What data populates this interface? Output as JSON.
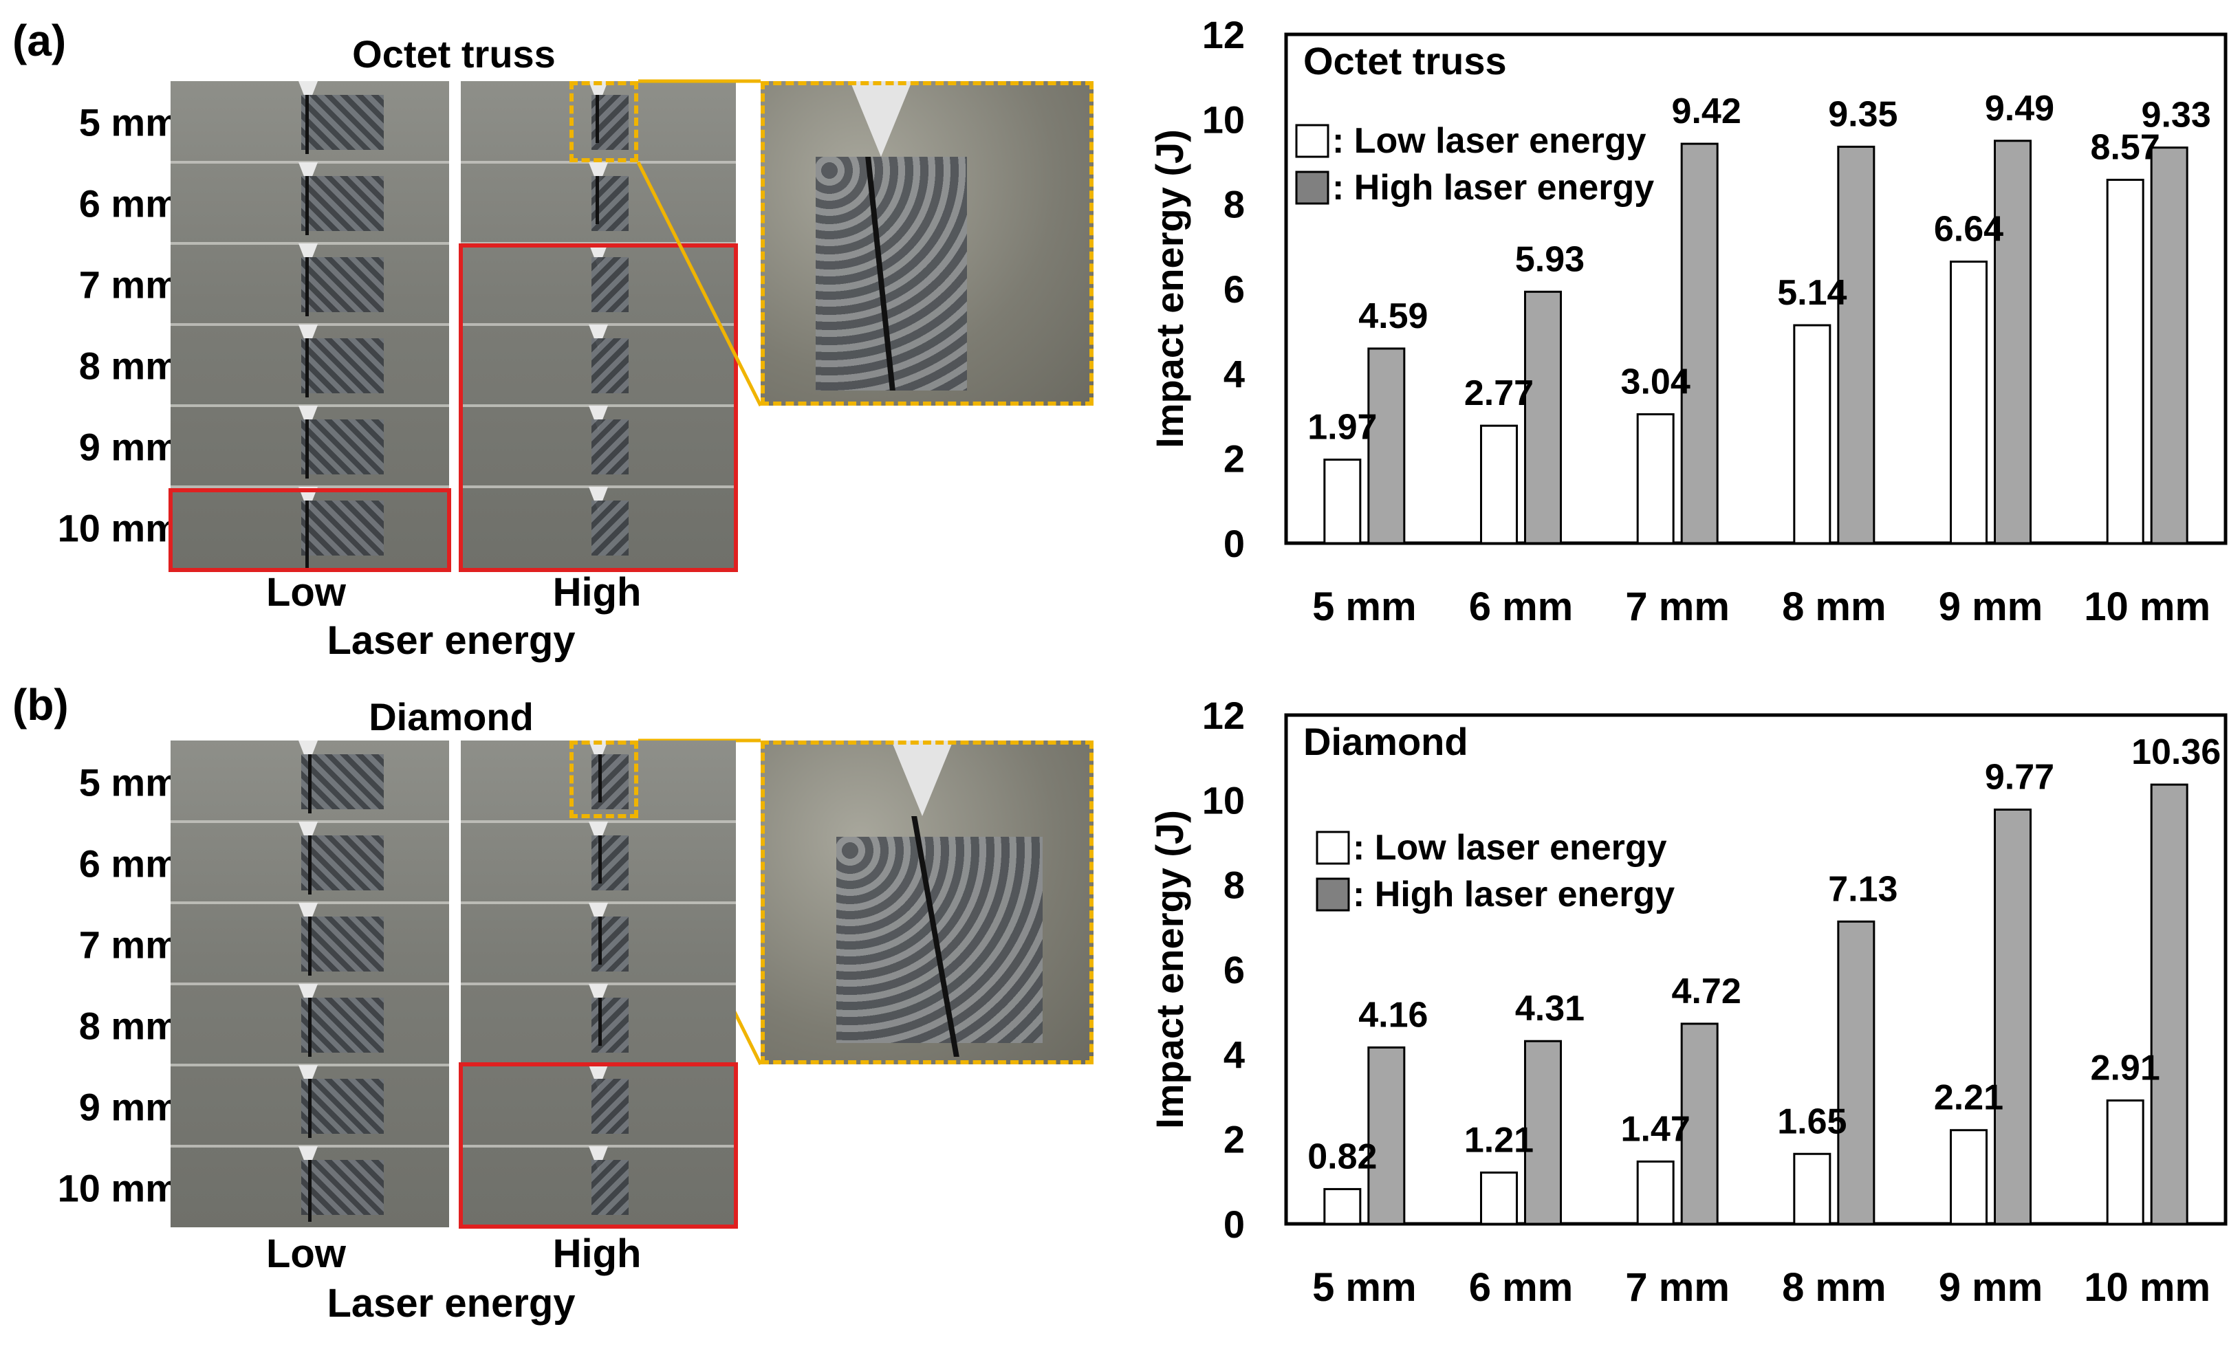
{
  "panel_a": {
    "tag": "(a)",
    "title": "Octet truss",
    "rows": [
      "5 mm",
      "6 mm",
      "7 mm",
      "8 mm",
      "9 mm",
      "10 mm"
    ],
    "col_low": "Low",
    "col_high": "High",
    "xaxis_caption": "Laser energy"
  },
  "panel_b": {
    "tag": "(b)",
    "title": "Diamond",
    "rows": [
      "5 mm",
      "6 mm",
      "7 mm",
      "8 mm",
      "9 mm",
      "10 mm"
    ],
    "col_low": "Low",
    "col_high": "High",
    "xaxis_caption": "Laser energy"
  },
  "colors": {
    "low_bar": "#ffffff",
    "high_bar": "#a6a6a6",
    "highlight_box": "#e02020",
    "zoom_box": "#f0b400"
  },
  "chart_data": [
    {
      "type": "bar",
      "title": "Octet truss",
      "categories": [
        "5 mm",
        "6 mm",
        "7 mm",
        "8 mm",
        "9 mm",
        "10 mm"
      ],
      "series": [
        {
          "name": ": Low laser energy",
          "values": [
            1.97,
            2.77,
            3.04,
            5.14,
            6.64,
            8.57
          ]
        },
        {
          "name": ": High laser energy",
          "values": [
            4.59,
            5.93,
            9.42,
            9.35,
            9.49,
            9.33
          ]
        }
      ],
      "xlabel": "",
      "ylabel": "Impact energy (J)",
      "ylim": [
        0,
        12
      ],
      "yticks": [
        0,
        2,
        4,
        6,
        8,
        10,
        12
      ],
      "legend": "top-left",
      "grid": false
    },
    {
      "type": "bar",
      "title": "Diamond",
      "categories": [
        "5 mm",
        "6 mm",
        "7 mm",
        "8 mm",
        "9 mm",
        "10 mm"
      ],
      "series": [
        {
          "name": ": Low laser energy",
          "values": [
            0.82,
            1.21,
            1.47,
            1.65,
            2.21,
            2.91
          ]
        },
        {
          "name": ": High laser energy",
          "values": [
            4.16,
            4.31,
            4.72,
            7.13,
            9.77,
            10.36
          ]
        }
      ],
      "xlabel": "",
      "ylabel": "Impact energy (J)",
      "ylim": [
        0,
        12
      ],
      "yticks": [
        0,
        2,
        4,
        6,
        8,
        10,
        12
      ],
      "legend": "top-left",
      "grid": false
    }
  ]
}
